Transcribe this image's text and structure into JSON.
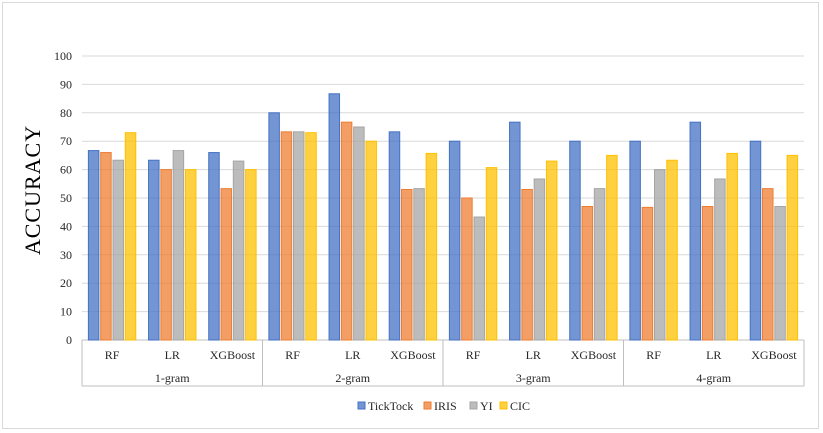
{
  "chart_data": {
    "type": "bar",
    "title": "",
    "xlabel": "",
    "ylabel": "ACCURACY",
    "ylim": [
      0,
      100
    ],
    "yticks": [
      0,
      10,
      20,
      30,
      40,
      50,
      60,
      70,
      80,
      90,
      100
    ],
    "grid": true,
    "legend_position": "bottom",
    "groups": [
      "1-gram",
      "2-gram",
      "3-gram",
      "4-gram"
    ],
    "categories": [
      "RF",
      "LR",
      "XGBoost",
      "RF",
      "LR",
      "XGBoost",
      "RF",
      "LR",
      "XGBoost",
      "RF",
      "LR",
      "XGBoost"
    ],
    "series": [
      {
        "name": "TickTock",
        "color": "#4472c4",
        "values": [
          66.7,
          63.3,
          66.0,
          80.0,
          86.7,
          73.3,
          70.0,
          76.7,
          70.0,
          70.0,
          76.7,
          70.0
        ]
      },
      {
        "name": "IRIS",
        "color": "#ed7d31",
        "values": [
          66.0,
          60.0,
          53.3,
          73.3,
          76.7,
          53.0,
          50.0,
          53.0,
          47.0,
          46.7,
          47.0,
          53.3
        ]
      },
      {
        "name": "YI",
        "color": "#a5a5a5",
        "values": [
          63.3,
          66.7,
          63.0,
          73.3,
          75.0,
          53.3,
          43.3,
          56.7,
          53.3,
          60.0,
          56.7,
          47.0
        ]
      },
      {
        "name": "CIC",
        "color": "#ffc000",
        "values": [
          73.0,
          60.0,
          60.0,
          73.0,
          70.0,
          65.7,
          60.7,
          63.0,
          65.0,
          63.3,
          65.7,
          65.0
        ]
      }
    ]
  }
}
